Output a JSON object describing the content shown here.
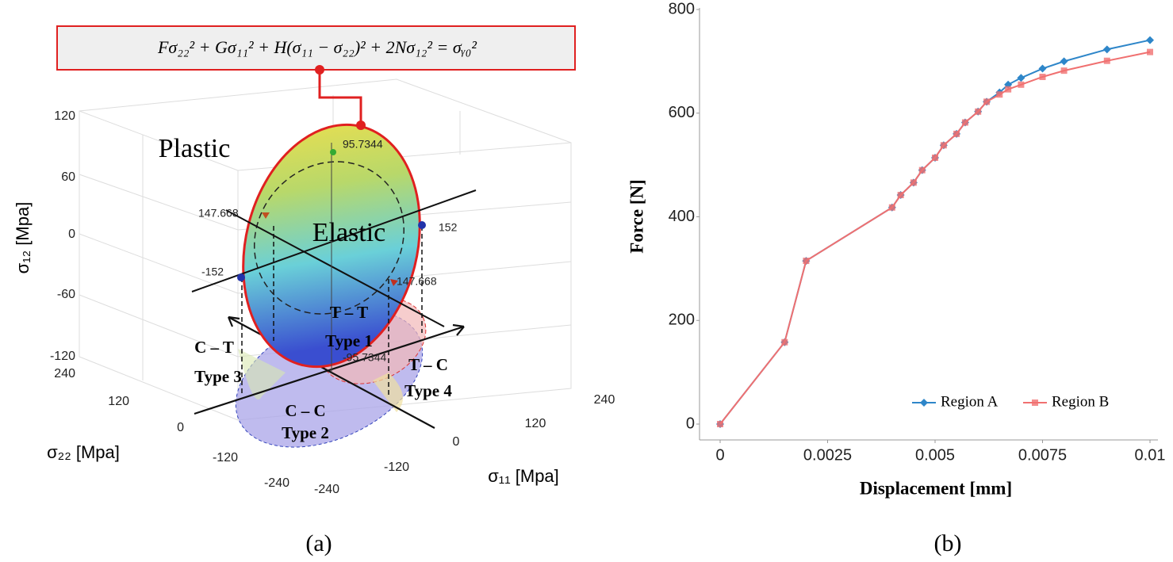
{
  "chart_data": {
    "type": "line",
    "x_label": "Displacement [mm]",
    "y_label": "Force [N]",
    "x": [
      0,
      0.0015,
      0.002,
      0.004,
      0.0042,
      0.0045,
      0.0047,
      0.005,
      0.0052,
      0.0055,
      0.0057,
      0.006,
      0.0062,
      0.0065,
      0.0067,
      0.007,
      0.0075,
      0.008,
      0.009,
      0.01
    ],
    "series": [
      {
        "name": "Region A",
        "color": "#2e86c9",
        "marker": "diamond",
        "values": [
          0,
          158,
          315,
          418,
          442,
          466,
          490,
          514,
          538,
          560,
          582,
          603,
          622,
          640,
          655,
          668,
          686,
          700,
          723,
          741
        ]
      },
      {
        "name": "Region B",
        "color": "#f07070",
        "marker": "square",
        "values": [
          0,
          158,
          315,
          418,
          442,
          466,
          490,
          514,
          538,
          560,
          582,
          603,
          622,
          636,
          646,
          655,
          670,
          682,
          701,
          718
        ]
      }
    ],
    "xlim": [
      0,
      0.01
    ],
    "xticks": [
      0,
      0.0025,
      0.005,
      0.0075,
      0.01
    ],
    "ylim": [
      0,
      800
    ],
    "yticks": [
      0,
      200,
      400,
      600,
      800
    ],
    "legend": "lower right"
  },
  "diagram": {
    "equation": "Fσ₂₂² + Gσ₁₁² + H(σ₁₁ − σ₂₂)² + 2Nσ₁₂² = σᵧ₀²",
    "z_label": "σ₁₂ [Mpa]",
    "z_ticks": [
      120,
      60,
      0,
      -60,
      -120
    ],
    "y_label": "σ₂₂ [Mpa]",
    "y_ticks": [
      240,
      120,
      0,
      -120,
      -240
    ],
    "x_label": "σ₁₁ [Mpa]",
    "x_ticks": [
      -240,
      -120,
      0,
      120,
      240
    ],
    "regions": [
      "Plastic",
      "Elastic"
    ],
    "points": [
      95.7344,
      147.668,
      152,
      -152,
      147.668,
      -95.7344
    ],
    "quadrants": [
      {
        "stress": "T – T",
        "type": "Type 1"
      },
      {
        "stress": "C – T",
        "type": "Type 3"
      },
      {
        "stress": "C – C",
        "type": "Type 2"
      },
      {
        "stress": "T – C",
        "type": "Type 4"
      }
    ]
  },
  "captions": [
    "(a)",
    "(b)"
  ]
}
